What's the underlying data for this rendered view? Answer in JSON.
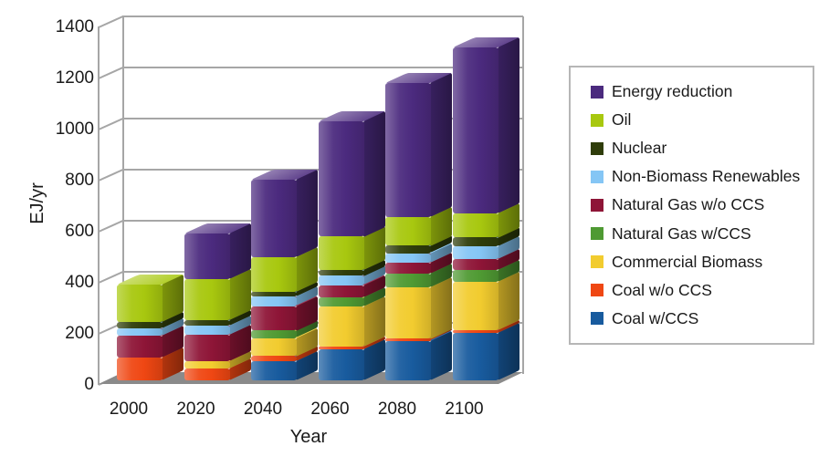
{
  "chart_data": {
    "type": "bar",
    "stacked": true,
    "title": "",
    "xlabel": "Year",
    "ylabel": "EJ/yr",
    "categories": [
      "2000",
      "2020",
      "2040",
      "2060",
      "2080",
      "2100"
    ],
    "ylim": [
      0,
      1400
    ],
    "yticks": [
      0,
      200,
      400,
      600,
      800,
      1000,
      1200,
      1400
    ],
    "grid": true,
    "projection": "3d-oblique",
    "legend_position": "right",
    "legend_order_top_to_bottom": [
      "Energy reduction",
      "Oil",
      "Nuclear",
      "Non-Biomass Renewables",
      "Natural Gas w/o CCS",
      "Natural Gas w/CCS",
      "Commercial Biomass",
      "Coal w/o CCS",
      "Coal w/CCS"
    ],
    "series_bottom_to_top": [
      {
        "name": "Coal w/CCS",
        "color": "#185B9E",
        "values": [
          0,
          0,
          75,
          120,
          155,
          185
        ]
      },
      {
        "name": "Coal w/o CCS",
        "color": "#EF4713",
        "values": [
          90,
          45,
          20,
          12,
          8,
          12
        ]
      },
      {
        "name": "Commercial Biomass",
        "color": "#F2CC2F",
        "values": [
          0,
          30,
          71,
          158,
          202,
          190
        ]
      },
      {
        "name": "Natural Gas w/CCS",
        "color": "#4F9A33",
        "values": [
          0,
          0,
          30,
          36,
          54,
          45
        ]
      },
      {
        "name": "Natural Gas w/o CCS",
        "color": "#8E1537",
        "values": [
          85,
          104,
          95,
          47,
          42,
          42
        ]
      },
      {
        "name": "Non-Biomass Renewables",
        "color": "#85C6F5",
        "values": [
          27,
          37,
          36,
          36,
          36,
          50
        ]
      },
      {
        "name": "Nuclear",
        "color": "#2F3D0A",
        "values": [
          26,
          20,
          18,
          24,
          30,
          36
        ]
      },
      {
        "name": "Oil",
        "color": "#A8C80F",
        "values": [
          147,
          160,
          137,
          131,
          113,
          95
        ]
      },
      {
        "name": "Energy reduction",
        "color": "#4B2A7E",
        "values": [
          0,
          179,
          304,
          452,
          525,
          650
        ]
      }
    ],
    "totals": [
      375,
      575,
      786,
      1016,
      1165,
      1305
    ],
    "colors": {
      "floor": "#8a8a8a",
      "grid": "#a6a6a6",
      "text": "#1a1a1a",
      "background": "#ffffff"
    }
  }
}
